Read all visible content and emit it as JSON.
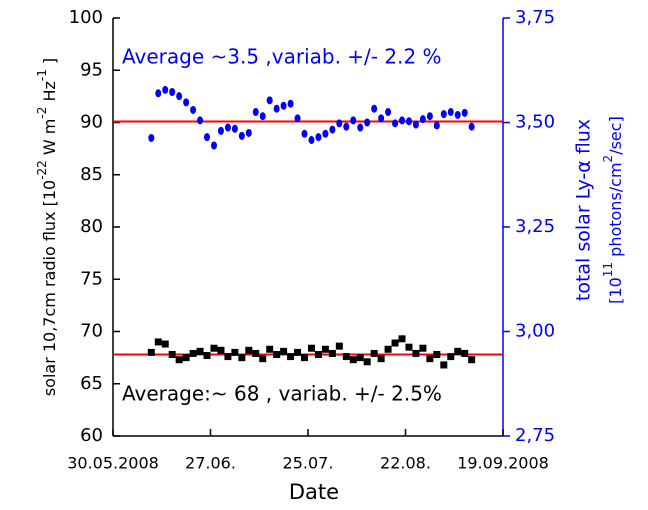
{
  "chart_data": {
    "type": "scatter",
    "xlabel": "Date",
    "ylabel_parts": [
      "solar 10,7cm radio flux [10",
      "-22",
      " W m",
      "-2",
      " Hz",
      "-1",
      " ]"
    ],
    "y2label_line1": "total  solar Ly-α flux",
    "y2label_parts": [
      "[10",
      "11",
      " photons/cm",
      "2",
      "/sec]"
    ],
    "annotations": [
      {
        "text": "Average ~3.5 ,variab. +/- 2.2 %",
        "color": "#0000ff"
      },
      {
        "text": "Average:~ 68 , variab. +/- 2.5%",
        "color": "#000000"
      }
    ],
    "xlim": [
      0,
      112
    ],
    "xticks": [
      {
        "value": 0,
        "label": "30.05.2008"
      },
      {
        "value": 28,
        "label": "27.06."
      },
      {
        "value": 56,
        "label": "25.07."
      },
      {
        "value": 84,
        "label": "22.08."
      },
      {
        "value": 112,
        "label": "19.09.2008"
      }
    ],
    "ylim": [
      60,
      100
    ],
    "yticks": [
      60,
      65,
      70,
      75,
      80,
      85,
      90,
      95,
      100
    ],
    "y2lim": [
      2.75,
      3.75
    ],
    "y2ticks": [
      {
        "value": 2.75,
        "label": "2,75"
      },
      {
        "value": 3.0,
        "label": "3,00"
      },
      {
        "value": 3.25,
        "label": "3,25"
      },
      {
        "value": 3.5,
        "label": "3,50"
      },
      {
        "value": 3.75,
        "label": "3,75"
      }
    ],
    "reference_lines": [
      {
        "value": 90.1,
        "color": "#ff0000"
      },
      {
        "value": 67.8,
        "color": "#ff0000"
      }
    ],
    "x": [
      11,
      13,
      15,
      17,
      19,
      21,
      23,
      25,
      27,
      29,
      31,
      33,
      35,
      37,
      39,
      41,
      43,
      45,
      47,
      49,
      51,
      53,
      55,
      57,
      59,
      61,
      63,
      65,
      67,
      69,
      71,
      73,
      75,
      77,
      79,
      81,
      83,
      85,
      87,
      89,
      91,
      93,
      95,
      97,
      99,
      101,
      103
    ],
    "series": [
      {
        "color": "#000000",
        "marker": "square",
        "axis": "y",
        "values": [
          68,
          69,
          68.8,
          67.8,
          67.3,
          67.5,
          67.9,
          68.1,
          67.7,
          68.4,
          68.2,
          67.6,
          68,
          67.5,
          68.2,
          67.9,
          67.4,
          68.3,
          67.8,
          68.1,
          67.6,
          68,
          67.5,
          68.4,
          67.8,
          68.3,
          67.9,
          68.6,
          67.6,
          67.3,
          67.5,
          67.1,
          67.9,
          67.4,
          68.3,
          68.9,
          69.3,
          68.5,
          67.9,
          68.4,
          67.4,
          67.8,
          66.8,
          67.6,
          68.1,
          67.9,
          67.3
        ]
      },
      {
        "color": "#0000ff",
        "marker": "circle",
        "axis": "y2",
        "values": [
          3.463,
          3.57,
          3.578,
          3.573,
          3.563,
          3.548,
          3.53,
          3.505,
          3.465,
          3.445,
          3.48,
          3.488,
          3.485,
          3.468,
          3.475,
          3.525,
          3.515,
          3.553,
          3.533,
          3.54,
          3.545,
          3.51,
          3.473,
          3.458,
          3.465,
          3.473,
          3.483,
          3.498,
          3.49,
          3.505,
          3.488,
          3.5,
          3.533,
          3.51,
          3.525,
          3.498,
          3.505,
          3.503,
          3.495,
          3.508,
          3.515,
          3.493,
          3.52,
          3.525,
          3.518,
          3.523,
          3.49
        ]
      }
    ]
  }
}
